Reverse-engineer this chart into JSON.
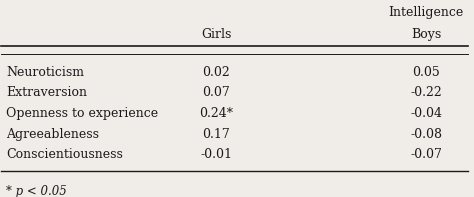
{
  "rows": [
    {
      "trait": "Neuroticism",
      "girls": "0.02",
      "boys": "0.05"
    },
    {
      "trait": "Extraversion",
      "girls": "0.07",
      "boys": "-0.22"
    },
    {
      "trait": "Openness to experience",
      "girls": "0.24*",
      "boys": "-0.04"
    },
    {
      "trait": "Agreeableness",
      "girls": "0.17",
      "boys": "-0.08"
    },
    {
      "trait": "Conscientiousness",
      "girls": "-0.01",
      "boys": "-0.07"
    }
  ],
  "header_line1": "Intelligence",
  "header_col1": "Girls",
  "header_col2": "Boys",
  "footnote": "* p < 0.05",
  "bg_color": "#f0ede8",
  "text_color": "#1a1a1a",
  "font_size": 9.0,
  "header_font_size": 9.0
}
